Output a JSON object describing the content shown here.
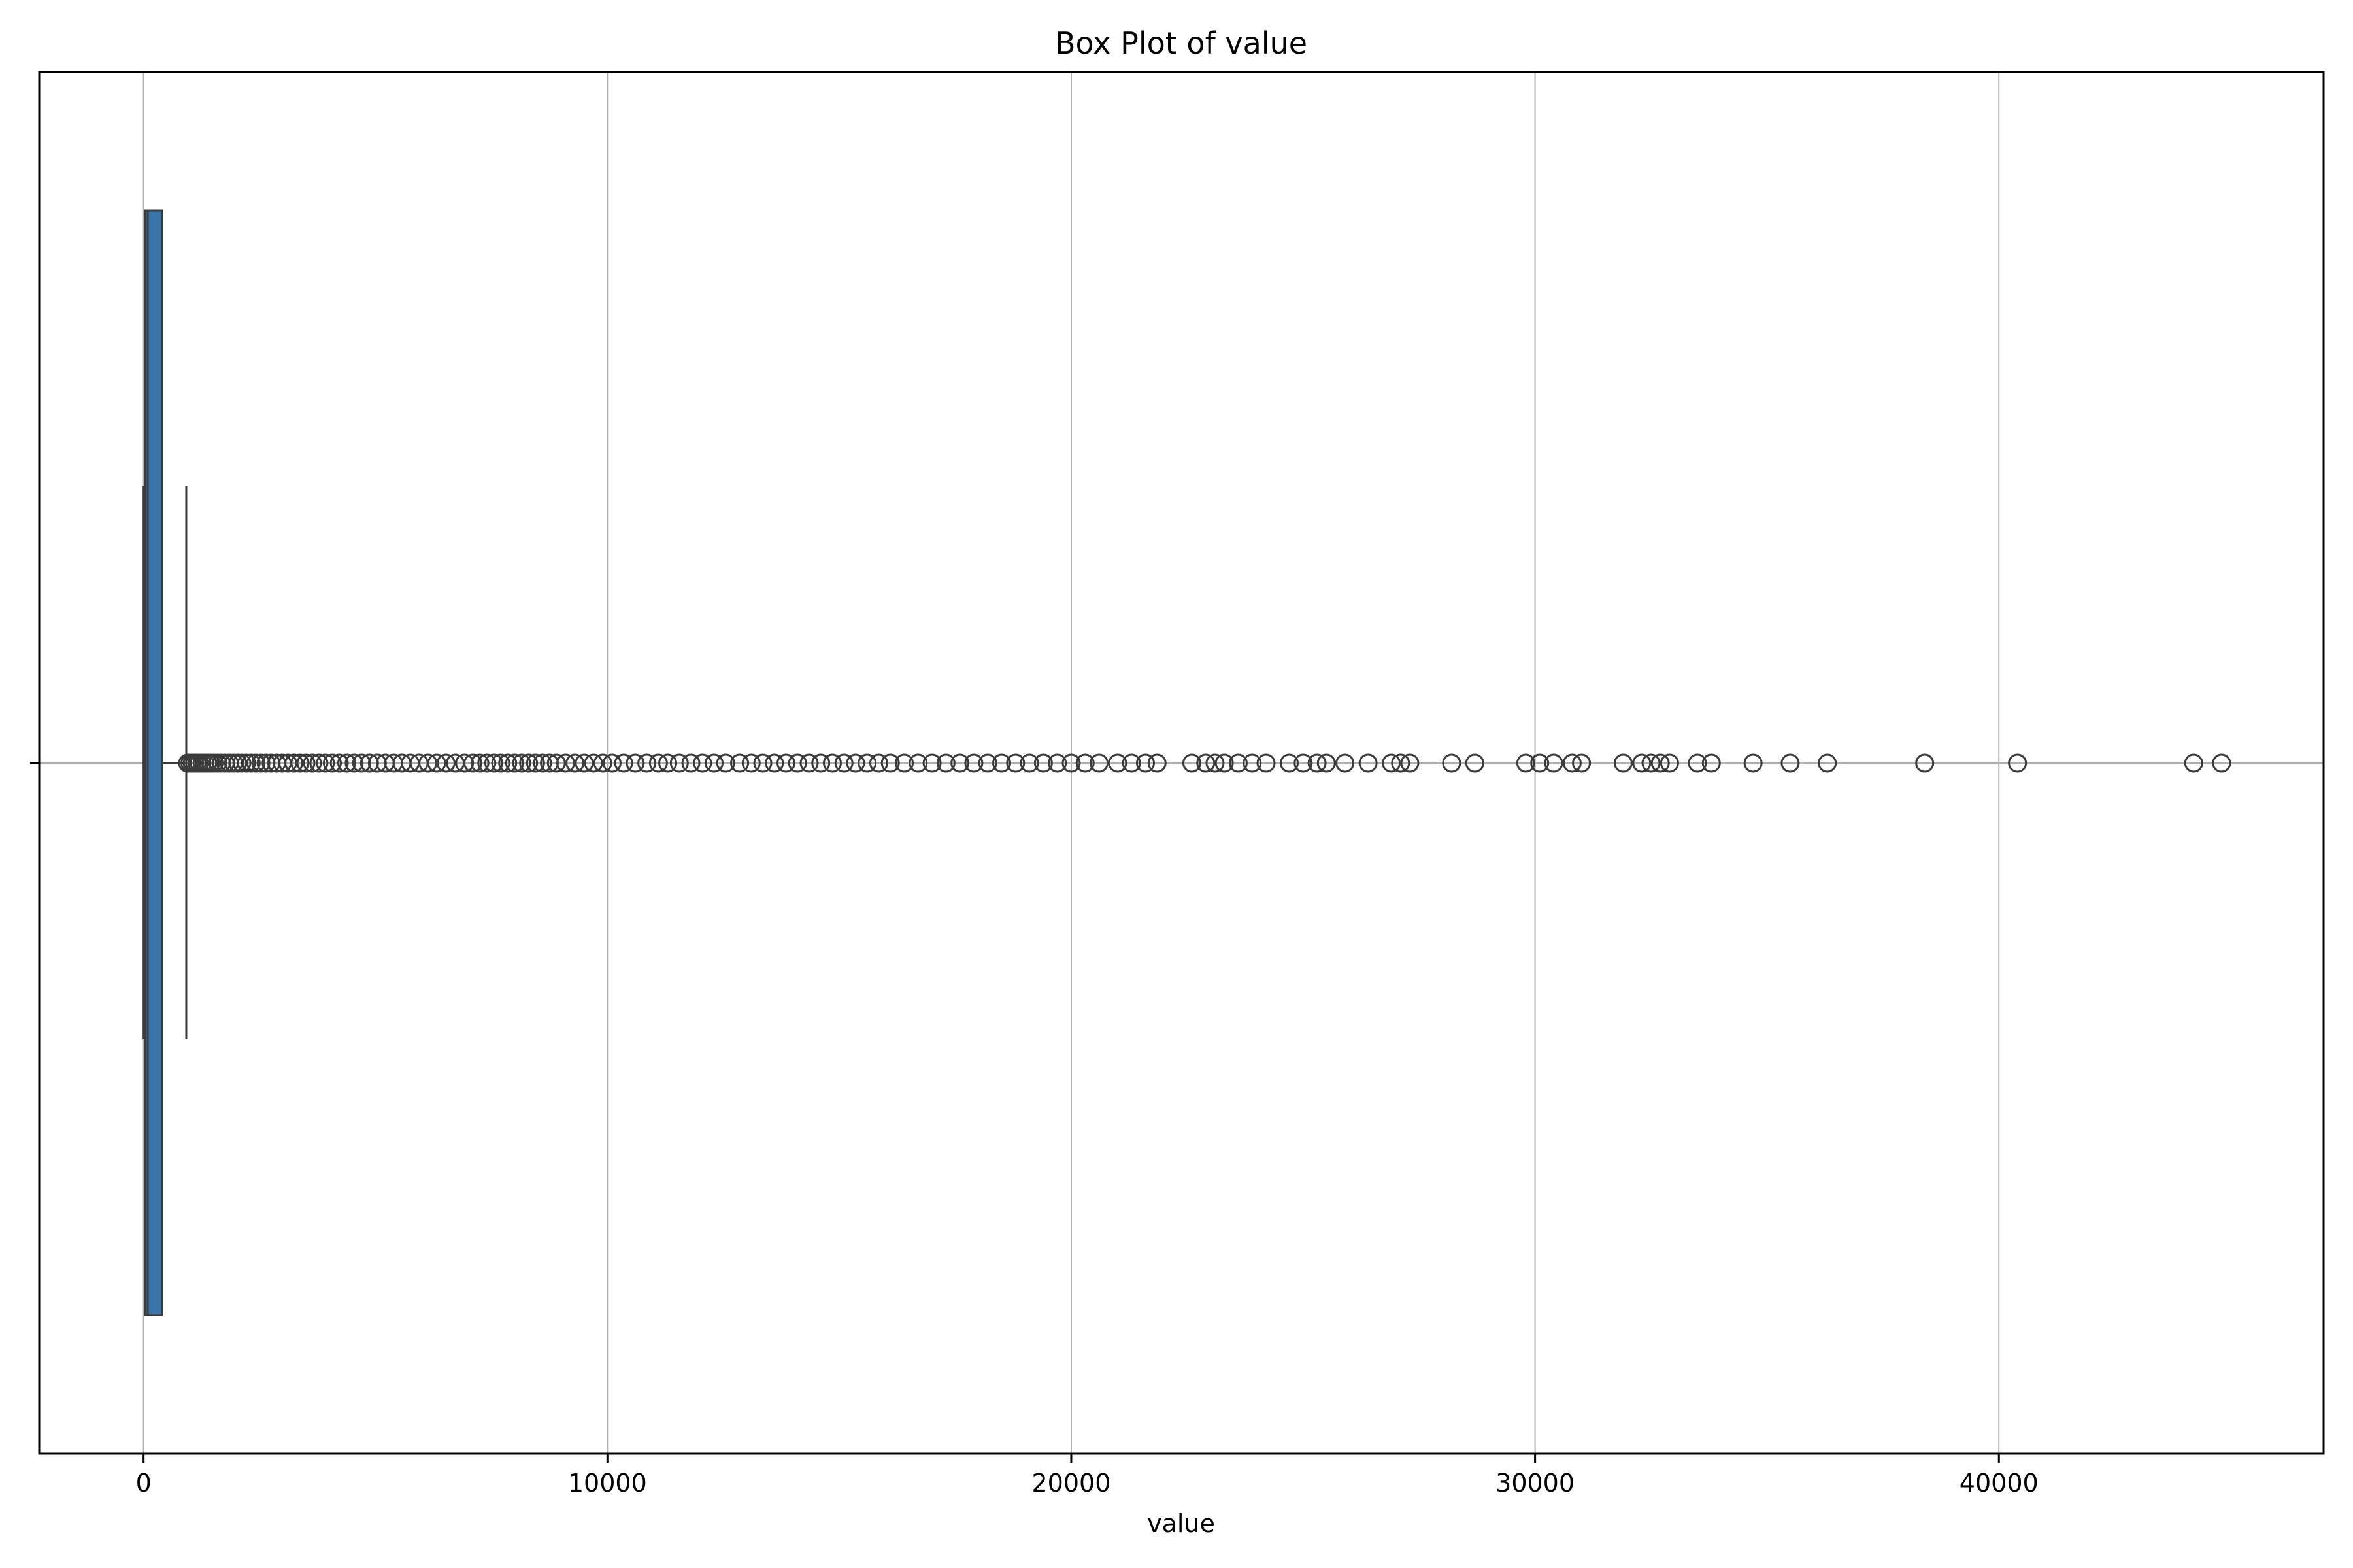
{
  "chart_data": {
    "type": "box",
    "title": "Box Plot of value",
    "xlabel": "value",
    "ylabel": "",
    "xlim": [
      -2250,
      47000
    ],
    "xticks": [
      0,
      10000,
      20000,
      30000,
      40000
    ],
    "xtick_labels": [
      "0",
      "10000",
      "20000",
      "30000",
      "40000"
    ],
    "grid": true,
    "box": {
      "whisker_low": 0,
      "q1": 30,
      "median": 90,
      "q3": 400,
      "whisker_high": 920
    },
    "outliers": [
      950,
      1000,
      1050,
      1100,
      1150,
      1200,
      1260,
      1320,
      1380,
      1450,
      1520,
      1600,
      1680,
      1760,
      1850,
      1940,
      2030,
      2120,
      2220,
      2320,
      2420,
      2530,
      2640,
      2750,
      2870,
      2990,
      3110,
      3240,
      3370,
      3500,
      3640,
      3780,
      3920,
      4070,
      4220,
      4380,
      4540,
      4700,
      4870,
      5040,
      5210,
      5390,
      5570,
      5750,
      5940,
      6130,
      6320,
      6520,
      6720,
      6920,
      7100,
      7250,
      7400,
      7550,
      7700,
      7850,
      8000,
      8150,
      8300,
      8450,
      8600,
      8750,
      8900,
      9100,
      9300,
      9500,
      9700,
      9900,
      10100,
      10350,
      10600,
      10850,
      11100,
      11300,
      11550,
      11800,
      12050,
      12300,
      12550,
      12850,
      13100,
      13350,
      13600,
      13850,
      14100,
      14350,
      14600,
      14850,
      15100,
      15350,
      15600,
      15850,
      16100,
      16400,
      16700,
      17000,
      17300,
      17600,
      17900,
      18200,
      18500,
      18800,
      19100,
      19400,
      19700,
      20000,
      20300,
      20600,
      21000,
      21300,
      21600,
      21850,
      22600,
      22900,
      23100,
      23300,
      23600,
      23900,
      24200,
      24700,
      25000,
      25300,
      25500,
      25900,
      26400,
      26900,
      27100,
      27300,
      28200,
      28700,
      29800,
      30100,
      30400,
      30800,
      31000,
      31900,
      32300,
      32500,
      32700,
      32900,
      33500,
      33800,
      34700,
      35500,
      36300,
      38400,
      40400,
      44200,
      44800
    ],
    "colors": {
      "box_fill": "#3a74a8",
      "line": "#3b3b3b",
      "grid": "#b0b0b0",
      "axes": "#000000"
    }
  }
}
